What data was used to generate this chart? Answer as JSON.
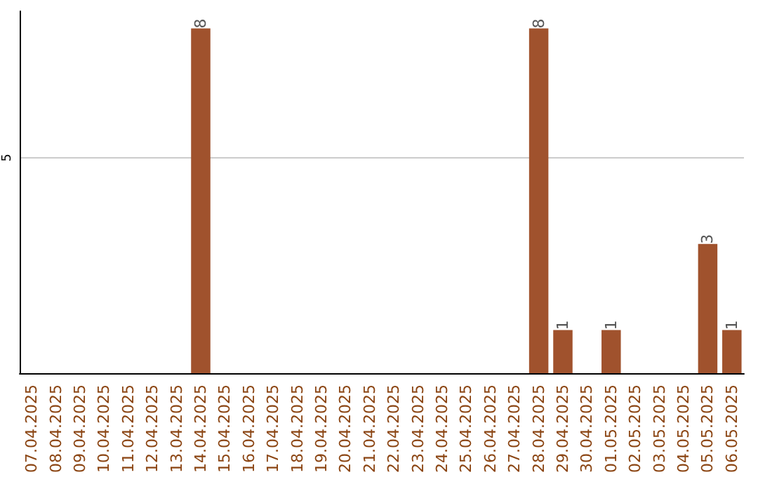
{
  "chart_data": {
    "type": "bar",
    "categories": [
      "07.04.2025",
      "08.04.2025",
      "09.04.2025",
      "10.04.2025",
      "11.04.2025",
      "12.04.2025",
      "13.04.2025",
      "14.04.2025",
      "15.04.2025",
      "16.04.2025",
      "17.04.2025",
      "18.04.2025",
      "19.04.2025",
      "20.04.2025",
      "21.04.2025",
      "22.04.2025",
      "23.04.2025",
      "24.04.2025",
      "25.04.2025",
      "26.04.2025",
      "27.04.2025",
      "28.04.2025",
      "29.04.2025",
      "30.04.2025",
      "01.05.2025",
      "02.05.2025",
      "03.05.2025",
      "04.05.2025",
      "05.05.2025",
      "06.05.2025"
    ],
    "values": [
      0,
      0,
      0,
      0,
      0,
      0,
      0,
      8,
      0,
      0,
      0,
      0,
      0,
      0,
      0,
      0,
      0,
      0,
      0,
      0,
      0,
      8,
      1,
      0,
      1,
      0,
      0,
      0,
      3,
      1
    ],
    "value_labels": [
      null,
      null,
      null,
      null,
      null,
      null,
      null,
      "8",
      null,
      null,
      null,
      null,
      null,
      null,
      null,
      null,
      null,
      null,
      null,
      null,
      null,
      "8",
      "1",
      null,
      "1",
      null,
      null,
      null,
      "3",
      "1"
    ],
    "color": "#a0522d",
    "ylim": [
      0,
      8.4
    ],
    "yticks": [
      5
    ],
    "grid": "y"
  }
}
